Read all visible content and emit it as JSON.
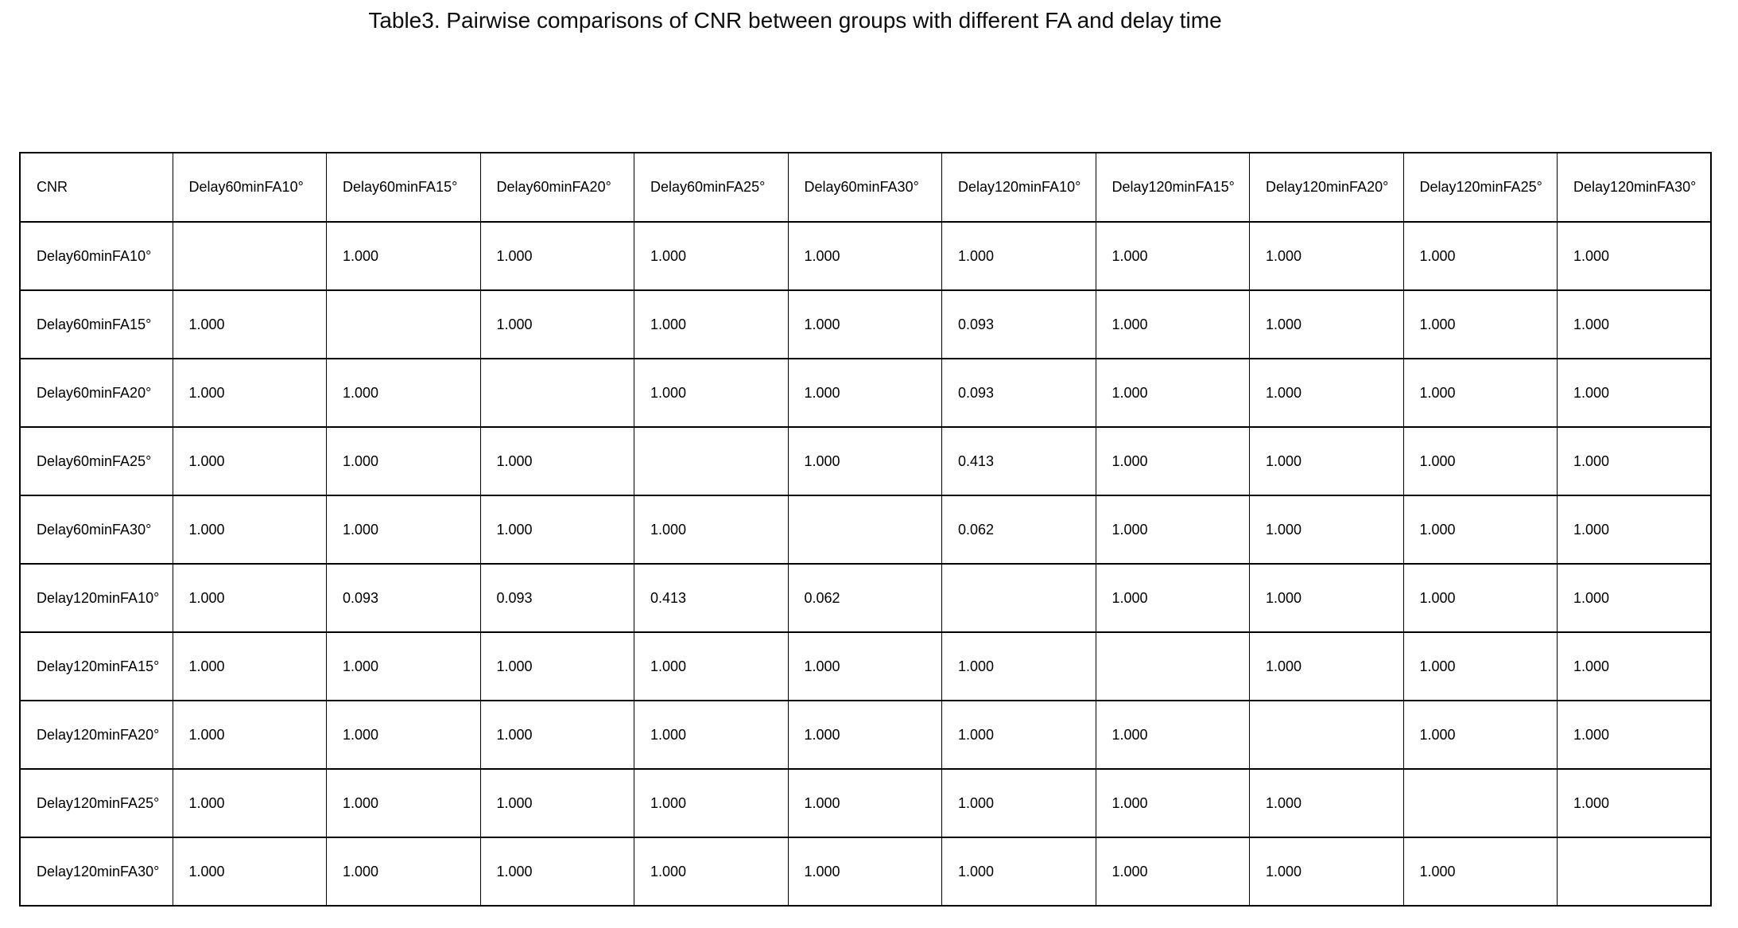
{
  "title": "Table3. Pairwise comparisons of CNR between groups with different FA and delay time",
  "table": {
    "corner_label": "CNR",
    "column_headers": [
      "Delay60minFA10°",
      "Delay60minFA15°",
      "Delay60minFA20°",
      "Delay60minFA25°",
      "Delay60minFA30°",
      "Delay120minFA10°",
      "Delay120minFA15°",
      "Delay120minFA20°",
      "Delay120minFA25°",
      "Delay120minFA30°"
    ],
    "rows": [
      {
        "label": "Delay60minFA10°",
        "values": [
          "",
          "1.000",
          "1.000",
          "1.000",
          "1.000",
          "1.000",
          "1.000",
          "1.000",
          "1.000",
          "1.000"
        ]
      },
      {
        "label": "Delay60minFA15°",
        "values": [
          "1.000",
          "",
          "1.000",
          "1.000",
          "1.000",
          "0.093",
          "1.000",
          "1.000",
          "1.000",
          "1.000"
        ]
      },
      {
        "label": "Delay60minFA20°",
        "values": [
          "1.000",
          "1.000",
          "",
          "1.000",
          "1.000",
          "0.093",
          "1.000",
          "1.000",
          "1.000",
          "1.000"
        ]
      },
      {
        "label": "Delay60minFA25°",
        "values": [
          "1.000",
          "1.000",
          "1.000",
          "",
          "1.000",
          "0.413",
          "1.000",
          "1.000",
          "1.000",
          "1.000"
        ]
      },
      {
        "label": "Delay60minFA30°",
        "values": [
          "1.000",
          "1.000",
          "1.000",
          "1.000",
          "",
          "0.062",
          "1.000",
          "1.000",
          "1.000",
          "1.000"
        ]
      },
      {
        "label": "Delay120minFA10°",
        "values": [
          "1.000",
          "0.093",
          "0.093",
          "0.413",
          "0.062",
          "",
          "1.000",
          "1.000",
          "1.000",
          "1.000"
        ]
      },
      {
        "label": "Delay120minFA15°",
        "values": [
          "1.000",
          "1.000",
          "1.000",
          "1.000",
          "1.000",
          "1.000",
          "",
          "1.000",
          "1.000",
          "1.000"
        ]
      },
      {
        "label": "Delay120minFA20°",
        "values": [
          "1.000",
          "1.000",
          "1.000",
          "1.000",
          "1.000",
          "1.000",
          "1.000",
          "",
          "1.000",
          "1.000"
        ]
      },
      {
        "label": "Delay120minFA25°",
        "values": [
          "1.000",
          "1.000",
          "1.000",
          "1.000",
          "1.000",
          "1.000",
          "1.000",
          "1.000",
          "",
          "1.000"
        ]
      },
      {
        "label": "Delay120minFA30°",
        "values": [
          "1.000",
          "1.000",
          "1.000",
          "1.000",
          "1.000",
          "1.000",
          "1.000",
          "1.000",
          "1.000",
          ""
        ]
      }
    ]
  }
}
